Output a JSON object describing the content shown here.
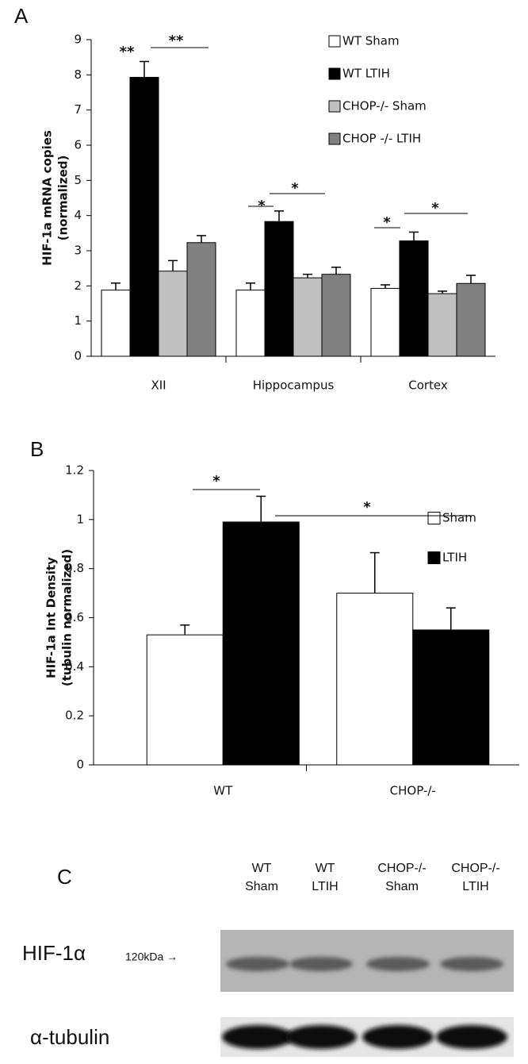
{
  "chart_data": [
    {
      "type": "bar",
      "panel_label": "A",
      "ylabel": [
        "HIF-1a mRNA copies",
        "(normalized)"
      ],
      "categories": [
        "XII",
        "Hippocampus",
        "Cortex"
      ],
      "series": [
        {
          "name": "WT Sham",
          "color": "#ffffff",
          "values": [
            1.88,
            1.88,
            1.93
          ],
          "errors": [
            0.2,
            0.2,
            0.1
          ]
        },
        {
          "name": "WT LTIH",
          "color": "#000000",
          "values": [
            7.93,
            3.83,
            3.28
          ],
          "errors": [
            0.45,
            0.3,
            0.25
          ]
        },
        {
          "name": "CHOP-/- Sham",
          "color": "#c0c0c0",
          "values": [
            2.42,
            2.23,
            1.78
          ],
          "errors": [
            0.3,
            0.1,
            0.07
          ]
        },
        {
          "name": "CHOP -/- LTIH",
          "color": "#808080",
          "values": [
            3.23,
            2.33,
            2.07
          ],
          "errors": [
            0.2,
            0.2,
            0.23
          ]
        }
      ],
      "ylim": [
        0,
        9
      ],
      "yticks": [
        0,
        1,
        2,
        3,
        4,
        5,
        6,
        7,
        8,
        9
      ],
      "annotations": [
        "**",
        "**",
        "*",
        "*",
        "*",
        "*"
      ]
    },
    {
      "type": "bar",
      "panel_label": "B",
      "ylabel": [
        "HIF-1a Int Density",
        "(tubulin normalized)"
      ],
      "categories": [
        "WT",
        "CHOP-/-"
      ],
      "series": [
        {
          "name": "Sham",
          "color": "#ffffff",
          "values": [
            0.53,
            0.7
          ],
          "errors": [
            0.04,
            0.165
          ]
        },
        {
          "name": "LTIH",
          "color": "#000000",
          "values": [
            0.99,
            0.55
          ],
          "errors": [
            0.105,
            0.09
          ]
        }
      ],
      "ylim": [
        0,
        1.2
      ],
      "yticks": [
        0,
        0.2,
        0.4,
        0.6,
        0.8,
        1,
        1.2
      ],
      "annotations": [
        "*",
        "*"
      ]
    }
  ],
  "blot": {
    "panel_label": "C",
    "lanes": [
      [
        "WT",
        "Sham"
      ],
      [
        "WT",
        "LTIH"
      ],
      [
        "CHOP-/-",
        "Sham"
      ],
      [
        "CHOP-/-",
        "LTIH"
      ]
    ],
    "rows": [
      {
        "label": "HIF-1α",
        "marker": "120kDa →"
      },
      {
        "label": "α-tubulin"
      }
    ]
  }
}
